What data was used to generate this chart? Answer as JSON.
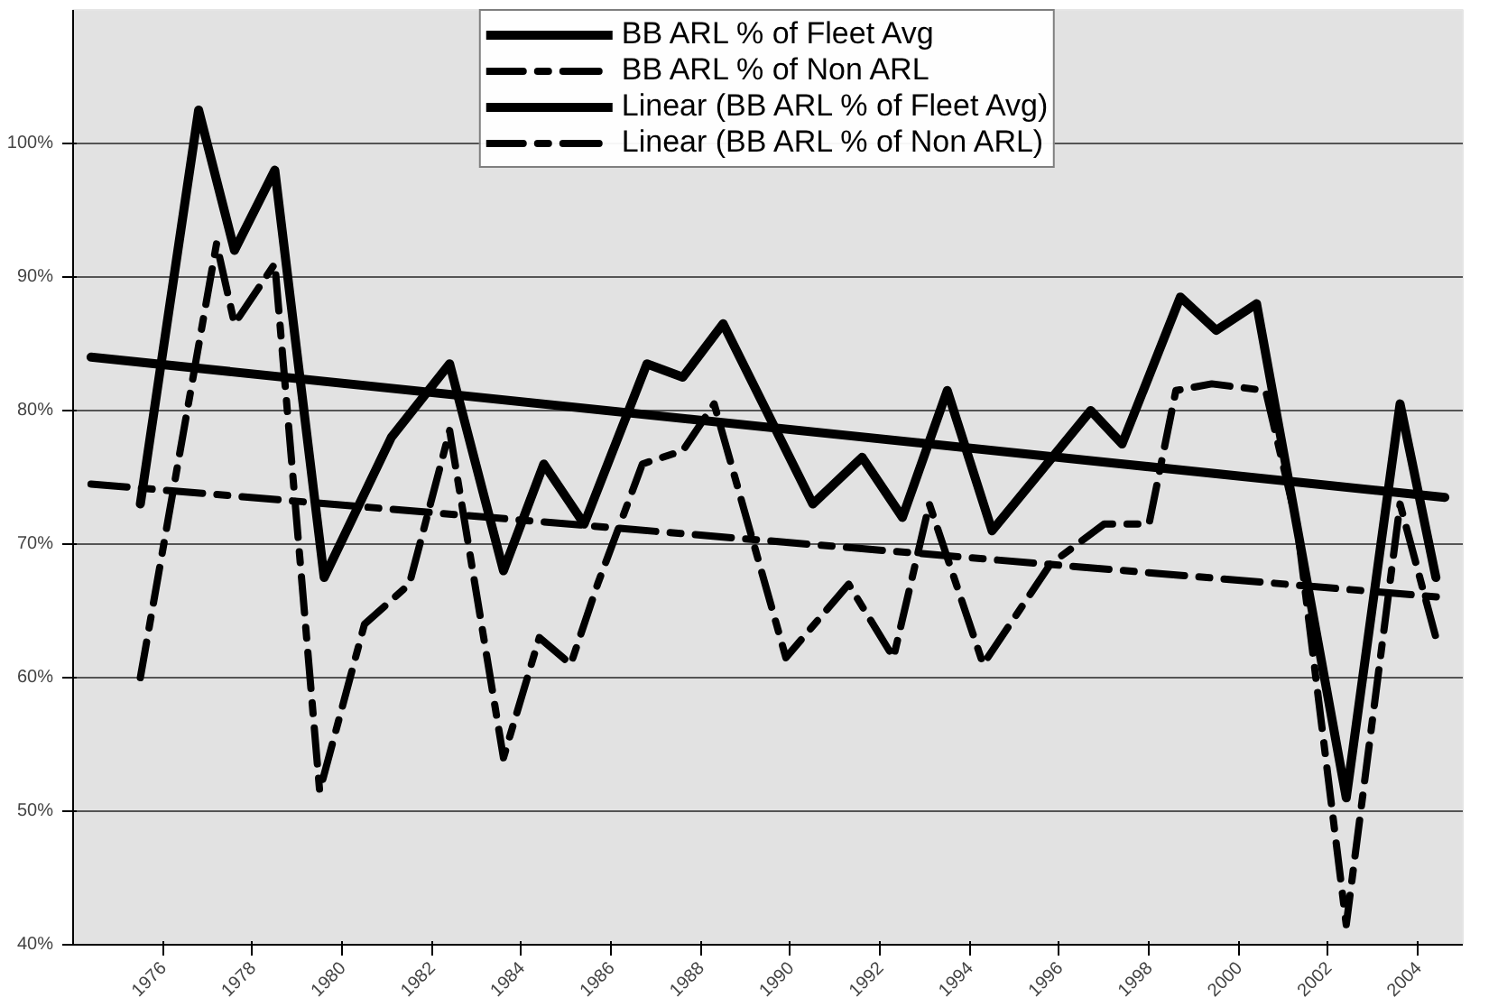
{
  "chart_data": {
    "type": "line",
    "xlim": [
      1974,
      2005
    ],
    "xticks": [
      1976,
      1978,
      1980,
      1982,
      1984,
      1986,
      1988,
      1990,
      1992,
      1994,
      1996,
      1998,
      2000,
      2002,
      2004
    ],
    "ylim": [
      40,
      110
    ],
    "yticks": [
      {
        "value": 40,
        "label": "40%"
      },
      {
        "value": 50,
        "label": "50%"
      },
      {
        "value": 60,
        "label": "60%"
      },
      {
        "value": 70,
        "label": "70%"
      },
      {
        "value": 80,
        "label": "80%"
      },
      {
        "value": 90,
        "label": "90%"
      },
      {
        "value": 100,
        "label": "100%"
      }
    ],
    "grid": "y",
    "legend": "top",
    "series": [
      {
        "name": "BB ARL % of Fleet Avg",
        "color": "#000000",
        "line_style": "solid",
        "x": [
          1975.5,
          1976.8,
          1977.6,
          1978.5,
          1979.6,
          1981.1,
          1982.4,
          1983.6,
          1984.5,
          1985.4,
          1986.8,
          1987.6,
          1988.5,
          1990.5,
          1991.6,
          1992.5,
          1993.5,
          1994.5,
          1996.7,
          1997.4,
          1998.7,
          1999.5,
          2000.4,
          2002.4,
          2003.6,
          2004.4
        ],
        "values": [
          73,
          102.5,
          92,
          98,
          67.5,
          78,
          83.5,
          68,
          76,
          71.5,
          83.5,
          82.5,
          86.5,
          73,
          76.5,
          72,
          81.5,
          71,
          80,
          77.5,
          88.5,
          86,
          88,
          51,
          80.5,
          67.5
        ]
      },
      {
        "name": "BB ARL % of Non ARL",
        "color": "#000000",
        "line_style": "dashed",
        "x": [
          1975.5,
          1977.2,
          1977.6,
          1978.5,
          1979.5,
          1980.5,
          1981.5,
          1982.4,
          1983.6,
          1984.4,
          1985.1,
          1985.7,
          1986.7,
          1987.6,
          1988.3,
          1989.9,
          1991.3,
          1992.3,
          1993.1,
          1994.3,
          1995.8,
          1997.0,
          1998.0,
          1998.6,
          1999.4,
          2000.6,
          2001.3,
          2002.4,
          2003.6,
          2004.4
        ],
        "values": [
          60,
          92.5,
          86.5,
          91,
          51.5,
          64,
          67,
          78.5,
          54,
          63,
          61,
          67,
          76,
          77,
          80.5,
          61.5,
          67,
          61.5,
          73,
          61,
          68.5,
          71.5,
          71.5,
          81.5,
          82,
          81.5,
          71.5,
          41.5,
          73,
          63
        ]
      },
      {
        "name": "Linear (BB ARL % of Fleet Avg)",
        "color": "#000000",
        "line_style": "solid",
        "x": [
          1974.4,
          2004.6
        ],
        "values": [
          84,
          73.5
        ]
      },
      {
        "name": "Linear (BB ARL % of Non ARL)",
        "color": "#000000",
        "line_style": "dashed",
        "x": [
          1974.4,
          2004.6
        ],
        "values": [
          74.5,
          66
        ]
      }
    ]
  }
}
